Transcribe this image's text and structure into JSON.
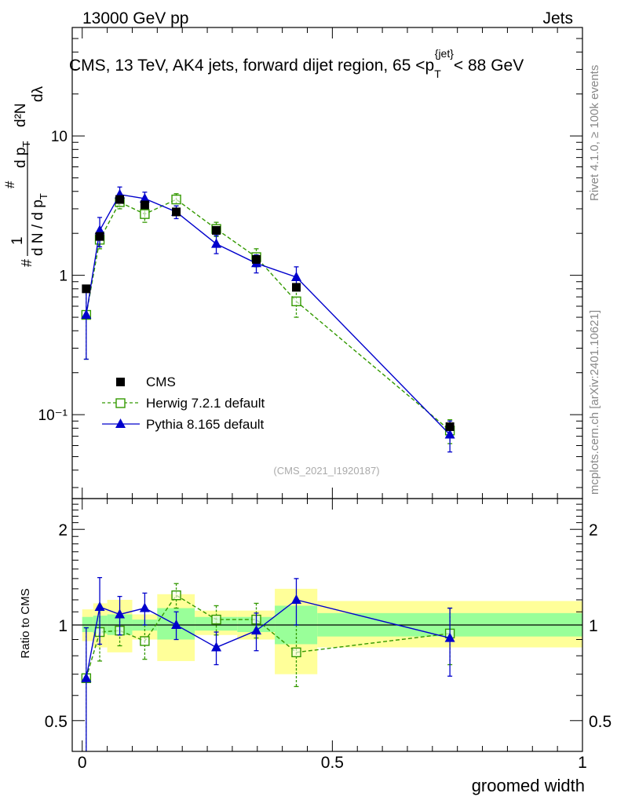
{
  "header": {
    "left": "13000 GeV pp",
    "right": "Jets"
  },
  "side_labels": {
    "rivet": "Rivet 4.1.0, ≥ 100k events",
    "mcplots": "mcplots.cern.ch [arXiv:2401.10621]"
  },
  "watermark": "(CMS_2021_I1920187)",
  "colors": {
    "cms": "#000000",
    "herwig": "#339900",
    "pythia": "#0000cc",
    "band_outer": "#ffff99",
    "band_inner": "#99ff99"
  },
  "chart_data": [
    {
      "type": "line",
      "title": "CMS, 13 TeV, AK4 jets, forward dijet region, 65 <p_T^{jet}< 88 GeV",
      "ylabel": "1/(dN/dp_T) d²N/(dp_T dλ)",
      "yscale": "log",
      "xlim": [
        -0.02,
        1.0
      ],
      "ylim": [
        0.025,
        60
      ],
      "y_ticks": [
        {
          "value": 10,
          "label": "10"
        },
        {
          "value": 1,
          "label": "1"
        },
        {
          "value": 0.1,
          "label": "10⁻¹"
        }
      ],
      "series": [
        {
          "name": "CMS",
          "marker": "square",
          "x": [
            0.008,
            0.035,
            0.075,
            0.125,
            0.188,
            0.268,
            0.348,
            0.428,
            0.735
          ],
          "y": [
            0.8,
            1.9,
            3.5,
            3.2,
            2.85,
            2.1,
            1.3,
            0.82,
            0.082
          ]
        },
        {
          "name": "Herwig 7.2.1 default",
          "marker": "open-square",
          "dashed": true,
          "x": [
            0.008,
            0.035,
            0.075,
            0.125,
            0.188,
            0.268,
            0.348,
            0.428,
            0.735
          ],
          "y": [
            0.52,
            1.8,
            3.35,
            2.75,
            3.5,
            2.15,
            1.35,
            0.65,
            0.077
          ],
          "yerr": [
            0.27,
            0.25,
            0.35,
            0.35,
            0.35,
            0.25,
            0.2,
            0.15,
            0.015
          ]
        },
        {
          "name": "Pythia 8.165 default",
          "marker": "triangle",
          "x": [
            0.008,
            0.035,
            0.075,
            0.125,
            0.188,
            0.268,
            0.348,
            0.428,
            0.735
          ],
          "y": [
            0.52,
            2.1,
            3.8,
            3.55,
            2.85,
            1.68,
            1.22,
            0.97,
            0.072
          ],
          "yerr": [
            0.27,
            0.5,
            0.5,
            0.4,
            0.3,
            0.25,
            0.18,
            0.18,
            0.018
          ]
        }
      ]
    },
    {
      "type": "line",
      "ylabel": "Ratio to CMS",
      "xlabel": "groomed width",
      "yscale": "log",
      "xlim": [
        -0.02,
        1.0
      ],
      "ylim": [
        0.4,
        2.5
      ],
      "x_ticks": [
        {
          "value": 0,
          "label": "0"
        },
        {
          "value": 0.5,
          "label": "0.5"
        },
        {
          "value": 1,
          "label": "1"
        }
      ],
      "y_ticks": [
        {
          "value": 2,
          "label": "2"
        },
        {
          "value": 1,
          "label": "1"
        },
        {
          "value": 0.5,
          "label": "0.5"
        }
      ],
      "bands": [
        {
          "x0": 0.0,
          "x1": 0.022,
          "outer": [
            0.89,
            1.12
          ],
          "inner": [
            0.95,
            1.06
          ]
        },
        {
          "x0": 0.022,
          "x1": 0.05,
          "outer": [
            0.85,
            1.17
          ],
          "inner": [
            0.94,
            1.07
          ]
        },
        {
          "x0": 0.05,
          "x1": 0.1,
          "outer": [
            0.82,
            1.2
          ],
          "inner": [
            0.93,
            1.08
          ]
        },
        {
          "x0": 0.1,
          "x1": 0.15,
          "outer": [
            0.9,
            1.08
          ],
          "inner": [
            0.96,
            1.04
          ]
        },
        {
          "x0": 0.15,
          "x1": 0.225,
          "outer": [
            0.77,
            1.25
          ],
          "inner": [
            0.9,
            1.13
          ]
        },
        {
          "x0": 0.225,
          "x1": 0.31,
          "outer": [
            0.93,
            1.11
          ],
          "inner": [
            0.96,
            1.06
          ]
        },
        {
          "x0": 0.31,
          "x1": 0.385,
          "outer": [
            0.9,
            1.11
          ],
          "inner": [
            0.95,
            1.06
          ]
        },
        {
          "x0": 0.385,
          "x1": 0.47,
          "outer": [
            0.7,
            1.3
          ],
          "inner": [
            0.87,
            1.15
          ]
        },
        {
          "x0": 0.47,
          "x1": 1.0,
          "outer": [
            0.85,
            1.19
          ],
          "inner": [
            0.92,
            1.09
          ]
        }
      ],
      "series": [
        {
          "name": "Herwig 7.2.1 default",
          "marker": "open-square",
          "dashed": true,
          "x": [
            0.008,
            0.035,
            0.075,
            0.125,
            0.188,
            0.268,
            0.348,
            0.428,
            0.735
          ],
          "y": [
            0.68,
            0.95,
            0.96,
            0.89,
            1.24,
            1.04,
            1.04,
            0.82,
            0.94
          ],
          "yerr": [
            0.3,
            0.18,
            0.1,
            0.11,
            0.11,
            0.11,
            0.13,
            0.18,
            0.19
          ]
        },
        {
          "name": "Pythia 8.165 default",
          "marker": "triangle",
          "x": [
            0.008,
            0.035,
            0.075,
            0.125,
            0.188,
            0.268,
            0.348,
            0.428,
            0.735
          ],
          "y": [
            0.68,
            1.14,
            1.08,
            1.13,
            1.0,
            0.85,
            0.96,
            1.2,
            0.91
          ],
          "yerr": [
            0.3,
            0.27,
            0.15,
            0.13,
            0.1,
            0.1,
            0.13,
            0.2,
            0.22
          ]
        }
      ]
    }
  ]
}
